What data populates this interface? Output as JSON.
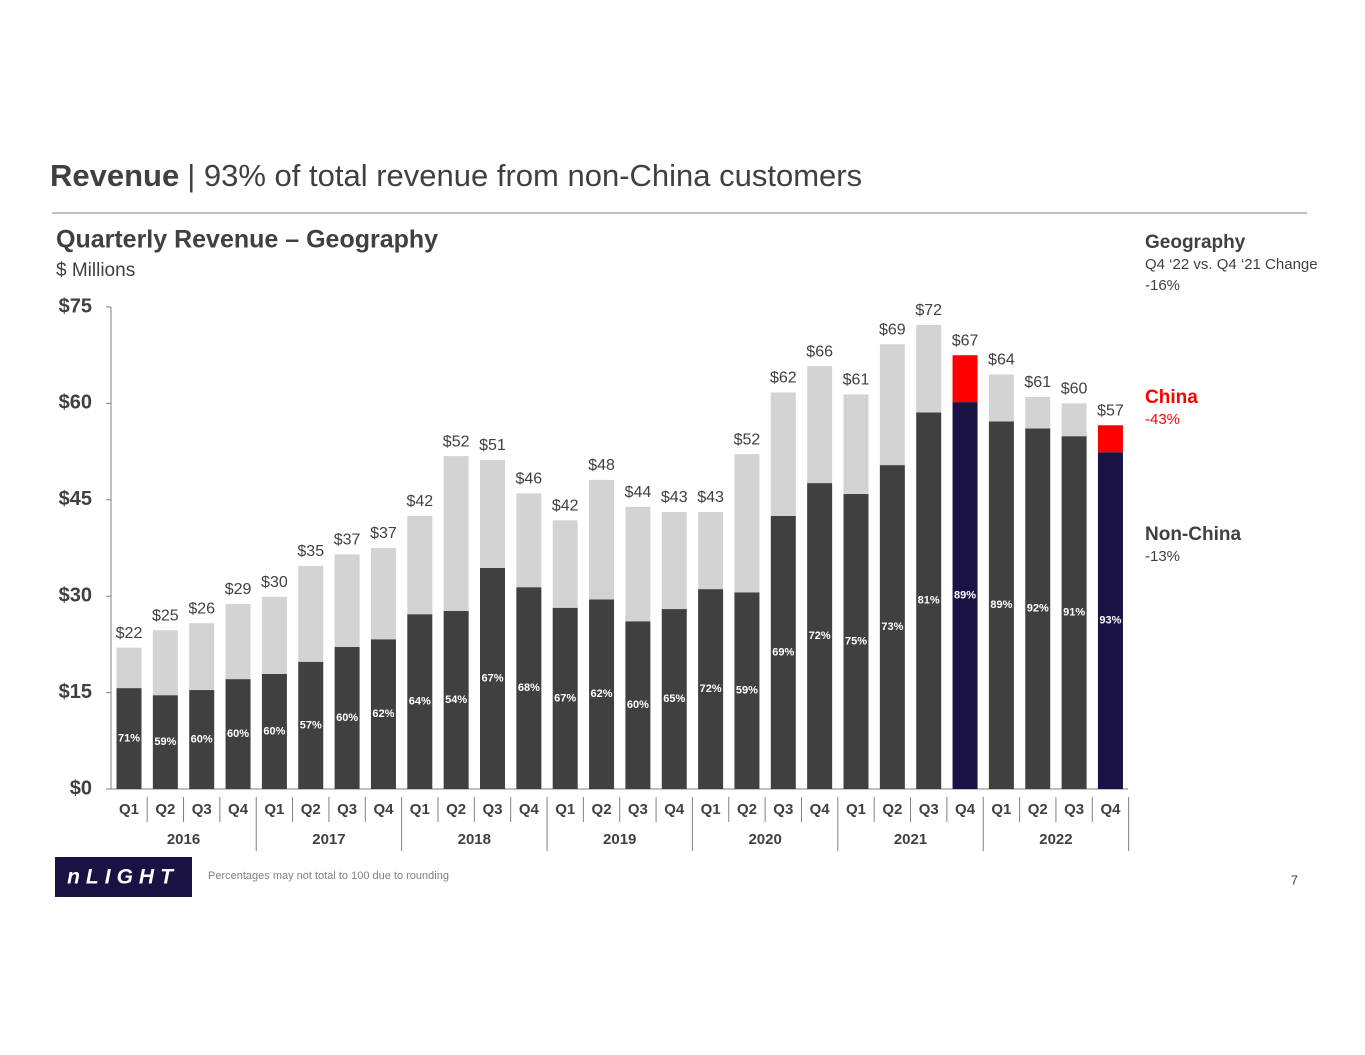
{
  "chart_data": {
    "type": "stacked_bar",
    "title": "Revenue",
    "title_rest": "| 93% of total revenue from non-China customers",
    "subtitle": "Quarterly Revenue – Geography",
    "unit_label": "$ Millions",
    "categories": [
      "Q1",
      "Q2",
      "Q3",
      "Q4",
      "Q1",
      "Q2",
      "Q3",
      "Q4",
      "Q1",
      "Q2",
      "Q3",
      "Q4",
      "Q1",
      "Q2",
      "Q3",
      "Q4",
      "Q1",
      "Q2",
      "Q3",
      "Q4",
      "Q1",
      "Q2",
      "Q3",
      "Q4",
      "Q1",
      "Q2",
      "Q3",
      "Q4"
    ],
    "years": [
      "2016",
      "2017",
      "2018",
      "2019",
      "2020",
      "2021",
      "2022"
    ],
    "ylim": [
      0,
      75
    ],
    "yticks": [
      {
        "value": 0,
        "label": "$0"
      },
      {
        "value": 15,
        "label": "$15"
      },
      {
        "value": 30,
        "label": "$30"
      },
      {
        "value": 45,
        "label": "$45"
      },
      {
        "value": 60,
        "label": "$60"
      },
      {
        "value": 75,
        "label": "$75"
      }
    ],
    "series": [
      {
        "name": "Non-China",
        "change": "-13%",
        "colors": [
          "#404040",
          "#404040",
          "#404040",
          "#404040",
          "#404040",
          "#404040",
          "#404040",
          "#404040",
          "#404040",
          "#404040",
          "#404040",
          "#404040",
          "#404040",
          "#404040",
          "#404040",
          "#404040",
          "#404040",
          "#404040",
          "#404040",
          "#404040",
          "#404040",
          "#404040",
          "#404040",
          "#1a1145",
          "#404040",
          "#404040",
          "#404040",
          "#1a1145"
        ],
        "values": [
          15.7,
          14.6,
          15.4,
          17.1,
          17.9,
          19.8,
          22.1,
          23.3,
          27.2,
          27.7,
          34.4,
          31.4,
          28.2,
          29.5,
          26.1,
          28.0,
          31.1,
          30.6,
          42.5,
          47.6,
          45.9,
          50.4,
          58.6,
          60.2,
          57.2,
          56.1,
          54.9,
          52.4
        ]
      },
      {
        "name": "China",
        "change": "-43%",
        "color": "#ff0000",
        "colors": [
          "#d3d3d3",
          "#d3d3d3",
          "#d3d3d3",
          "#d3d3d3",
          "#d3d3d3",
          "#d3d3d3",
          "#d3d3d3",
          "#d3d3d3",
          "#d3d3d3",
          "#d3d3d3",
          "#d3d3d3",
          "#d3d3d3",
          "#d3d3d3",
          "#d3d3d3",
          "#d3d3d3",
          "#d3d3d3",
          "#d3d3d3",
          "#d3d3d3",
          "#d3d3d3",
          "#d3d3d3",
          "#d3d3d3",
          "#d3d3d3",
          "#d3d3d3",
          "#ff0000",
          "#d3d3d3",
          "#d3d3d3",
          "#d3d3d3",
          "#ff0000"
        ],
        "values": [
          6.3,
          10.1,
          10.4,
          11.7,
          12.0,
          14.9,
          14.4,
          14.2,
          15.3,
          24.1,
          16.8,
          14.6,
          13.6,
          18.6,
          17.8,
          15.1,
          12.0,
          21.5,
          19.2,
          18.2,
          15.5,
          18.8,
          13.6,
          7.3,
          7.3,
          4.9,
          5.1,
          4.2
        ]
      }
    ],
    "totals": {
      "values": [
        22,
        25,
        26,
        29,
        30,
        35,
        37,
        37,
        42,
        52,
        51,
        46,
        42,
        48,
        44,
        43,
        43,
        52,
        62,
        66,
        61,
        69,
        72,
        67,
        64,
        61,
        60,
        57
      ],
      "value_labels": [
        "$22",
        "$25",
        "$26",
        "$29",
        "$30",
        "$35",
        "$37",
        "$37",
        "$42",
        "$52",
        "$51",
        "$46",
        "$42",
        "$48",
        "$44",
        "$43",
        "$43",
        "$52",
        "$62",
        "$66",
        "$61",
        "$69",
        "$72",
        "$67",
        "$64",
        "$61",
        "$60",
        "$57"
      ]
    },
    "shares": {
      "values": [
        71,
        59,
        60,
        60,
        60,
        57,
        60,
        62,
        64,
        54,
        67,
        68,
        67,
        62,
        60,
        65,
        72,
        59,
        69,
        72,
        75,
        73,
        81,
        89,
        89,
        92,
        91,
        93
      ],
      "value_labels": [
        "71%",
        "59%",
        "60%",
        "60%",
        "60%",
        "57%",
        "60%",
        "62%",
        "64%",
        "54%",
        "67%",
        "68%",
        "67%",
        "62%",
        "60%",
        "65%",
        "72%",
        "59%",
        "69%",
        "72%",
        "75%",
        "73%",
        "81%",
        "89%",
        "89%",
        "92%",
        "91%",
        "93%"
      ]
    },
    "panel_title": "Geography",
    "panel_subtitle": "Q4 ‘22 vs. Q4 ‘21 Change",
    "panel_total_change": "-16%",
    "logo": "nLIGHT",
    "footnote": "Percentages may not total to 100 due to rounding",
    "page_number": "7"
  }
}
